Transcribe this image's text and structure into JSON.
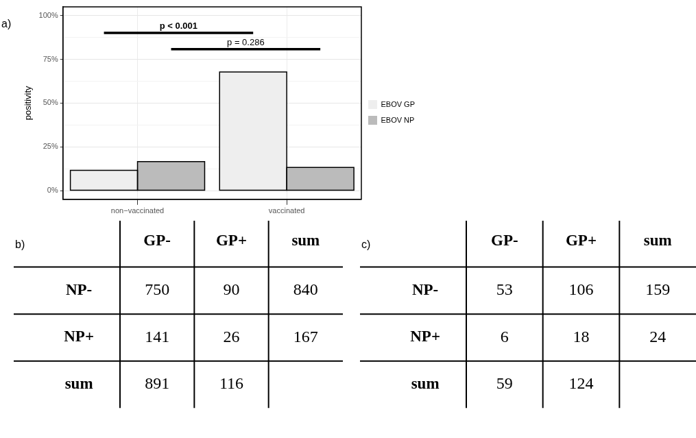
{
  "chart_data": [
    {
      "type": "bar",
      "title": "a)",
      "ylabel": "positivity",
      "categories": [
        "non−vaccinated",
        "vaccinated"
      ],
      "series": [
        {
          "name": "EBOV GP",
          "color": "#eeeeee",
          "values": [
            11.6,
            67.8
          ]
        },
        {
          "name": "EBOV NP",
          "color": "#bbbbbb",
          "values": [
            16.6,
            13.2
          ]
        }
      ],
      "ylim": [
        -5,
        105
      ],
      "yticks": [
        {
          "value": 0,
          "label": "0%"
        },
        {
          "value": 12.5,
          "label": null
        },
        {
          "value": 25,
          "label": "25%"
        },
        {
          "value": 37.5,
          "label": null
        },
        {
          "value": 50,
          "label": "50%"
        },
        {
          "value": 62.5,
          "label": null
        },
        {
          "value": 75,
          "label": "75%"
        },
        {
          "value": 87.5,
          "label": null
        },
        {
          "value": 100,
          "label": "100%"
        }
      ],
      "grid": true,
      "legend": "right",
      "annotations": [
        "p < 0.001",
        "p = 0.286"
      ]
    },
    {
      "type": "heatmap",
      "title": "b)",
      "categories": [
        "GP-",
        "GP+",
        "sum"
      ],
      "y_categories": [
        "NP-",
        "NP+",
        "sum"
      ],
      "cells": [
        [
          750,
          90,
          840
        ],
        [
          141,
          26,
          167
        ],
        [
          891,
          116,
          null
        ]
      ],
      "data_labels": true
    },
    {
      "type": "heatmap",
      "title": "c)",
      "categories": [
        "GP-",
        "GP+",
        "sum"
      ],
      "y_categories": [
        "NP-",
        "NP+",
        "sum"
      ],
      "cells": [
        [
          53,
          106,
          159
        ],
        [
          6,
          18,
          24
        ],
        [
          59,
          124,
          null
        ]
      ],
      "data_labels": true
    }
  ]
}
